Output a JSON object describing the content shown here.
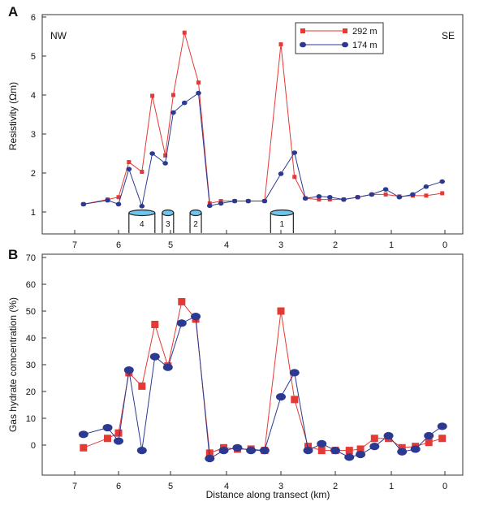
{
  "chart_data": [
    {
      "panel_label": "A",
      "type": "line",
      "xlabel": "",
      "ylabel": "Resistivity (Ωm)",
      "xlim": [
        7.4,
        -0.2
      ],
      "ylim": [
        0.5,
        6
      ],
      "x_ticks": [
        "7",
        "6",
        "5",
        "4",
        "3",
        "2",
        "1",
        "0"
      ],
      "y_ticks": [
        "1",
        "2",
        "3",
        "4",
        "5",
        "6"
      ],
      "annotations": {
        "left": "NW",
        "right": "SE"
      },
      "legend_position": "top-center",
      "series": [
        {
          "name": "292 m",
          "color": "#e53935",
          "marker": "square",
          "x": [
            6.8,
            6.25,
            6.0,
            5.8,
            5.55,
            5.35,
            5.1,
            4.95,
            4.75,
            4.5,
            4.3,
            4.1,
            3.85,
            3.6,
            3.3,
            3.0,
            2.75,
            2.55,
            2.3,
            2.1,
            1.85,
            1.6,
            1.35,
            1.1,
            0.85,
            0.6,
            0.35,
            0.05
          ],
          "y": [
            1.2,
            1.32,
            1.38,
            2.28,
            2.03,
            3.98,
            2.45,
            4.0,
            5.6,
            4.32,
            1.22,
            1.28,
            1.28,
            1.28,
            1.28,
            5.3,
            1.9,
            1.35,
            1.32,
            1.32,
            1.32,
            1.38,
            1.45,
            1.45,
            1.4,
            1.42,
            1.42,
            1.48
          ]
        },
        {
          "name": "174 m",
          "color": "#2b3990",
          "marker": "circle",
          "x": [
            6.8,
            6.25,
            6.0,
            5.8,
            5.55,
            5.35,
            5.1,
            4.95,
            4.75,
            4.5,
            4.3,
            4.1,
            3.85,
            3.6,
            3.3,
            3.0,
            2.75,
            2.55,
            2.3,
            2.1,
            1.85,
            1.6,
            1.35,
            1.1,
            0.85,
            0.6,
            0.35,
            0.05
          ],
          "y": [
            1.2,
            1.3,
            1.2,
            2.1,
            1.15,
            2.5,
            2.25,
            3.55,
            3.8,
            4.05,
            1.16,
            1.22,
            1.28,
            1.28,
            1.28,
            1.98,
            2.52,
            1.35,
            1.4,
            1.38,
            1.32,
            1.38,
            1.45,
            1.58,
            1.38,
            1.45,
            1.65,
            1.78
          ]
        }
      ],
      "features": [
        {
          "label": "4",
          "x": 5.55
        },
        {
          "label": "3",
          "x": 5.05
        },
        {
          "label": "2",
          "x": 4.55
        },
        {
          "label": "1",
          "x": 2.98
        }
      ]
    },
    {
      "panel_label": "B",
      "type": "line",
      "xlabel": "Distance along transect (km)",
      "ylabel": "Gas hydrate comcentration (%)",
      "xlim": [
        7.4,
        -0.2
      ],
      "ylim": [
        -10,
        70
      ],
      "x_ticks": [
        "7",
        "6",
        "5",
        "4",
        "3",
        "2",
        "1",
        "0"
      ],
      "y_ticks": [
        "0",
        "10",
        "20",
        "30",
        "40",
        "50",
        "60",
        "70"
      ],
      "series": [
        {
          "name": "292 m",
          "color": "#e53935",
          "marker": "square",
          "x": [
            6.8,
            6.25,
            6.0,
            5.8,
            5.55,
            5.3,
            5.05,
            4.8,
            4.55,
            4.3,
            4.05,
            3.8,
            3.55,
            3.3,
            3.0,
            2.75,
            2.5,
            2.25,
            2.0,
            1.75,
            1.55,
            1.3,
            1.05,
            0.8,
            0.55,
            0.3,
            0.05
          ],
          "y": [
            -1,
            2.5,
            4.5,
            27,
            22,
            45,
            29.5,
            53.5,
            47,
            -3,
            -1,
            -1.5,
            -1.5,
            -2,
            50,
            17,
            -0.5,
            -2,
            -2,
            -2,
            -1.5,
            2.5,
            2.5,
            -1,
            -0.5,
            1,
            2.5
          ]
        },
        {
          "name": "174 m",
          "color": "#2b3990",
          "marker": "circle",
          "x": [
            6.8,
            6.25,
            6.0,
            5.8,
            5.55,
            5.3,
            5.05,
            4.8,
            4.55,
            4.3,
            4.05,
            3.8,
            3.55,
            3.3,
            3.0,
            2.75,
            2.5,
            2.25,
            2.0,
            1.75,
            1.55,
            1.3,
            1.05,
            0.8,
            0.55,
            0.3,
            0.05
          ],
          "y": [
            4,
            6.5,
            1.5,
            28,
            -2,
            33,
            29,
            45.5,
            48,
            -5,
            -2,
            -1,
            -2,
            -2,
            18,
            27,
            -2,
            0.5,
            -2,
            -4.5,
            -3.5,
            -0.5,
            3.5,
            -2.5,
            -1.5,
            3.5,
            7
          ]
        }
      ]
    }
  ]
}
